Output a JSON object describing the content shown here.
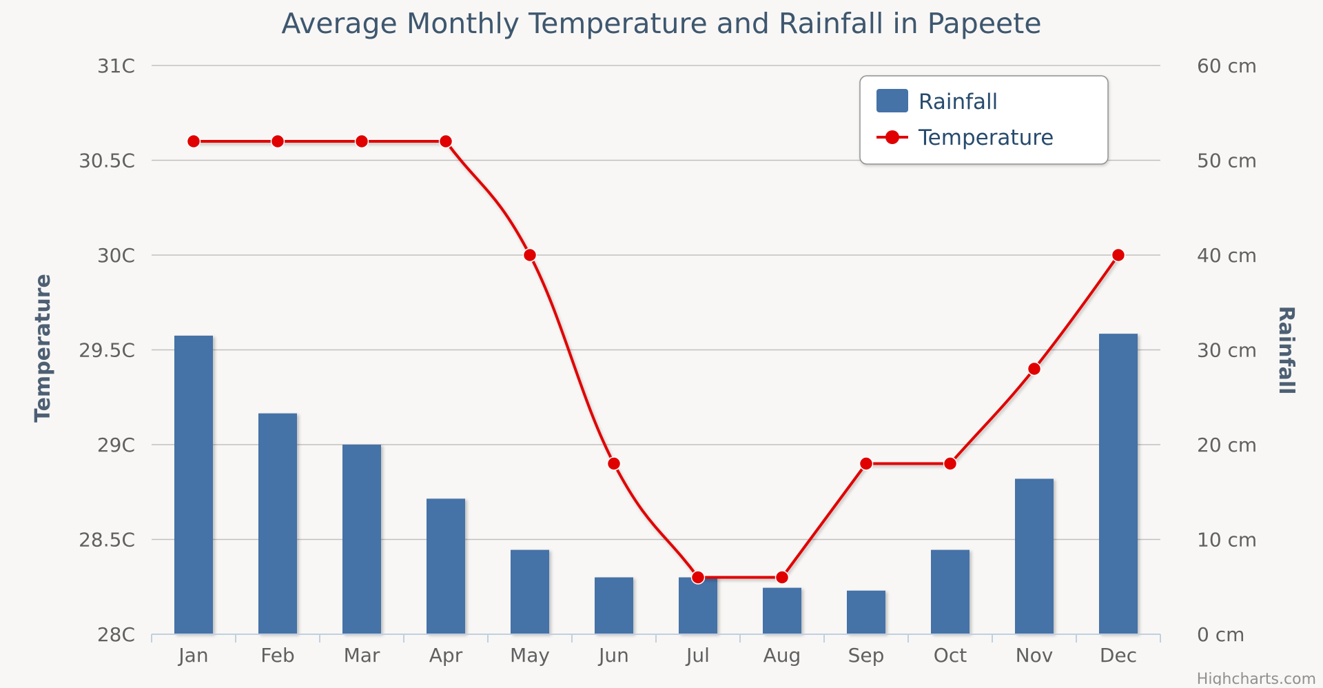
{
  "chart_data": {
    "type": "bar+line",
    "title": "Average Monthly Temperature and Rainfall in Papeete",
    "categories": [
      "Jan",
      "Feb",
      "Mar",
      "Apr",
      "May",
      "Jun",
      "Jul",
      "Aug",
      "Sep",
      "Oct",
      "Nov",
      "Dec"
    ],
    "series": [
      {
        "name": "Rainfall",
        "type": "bar",
        "axis": "right",
        "color": "#4572a7",
        "values": [
          31.5,
          23.3,
          20.0,
          14.3,
          8.9,
          6.0,
          6.0,
          4.9,
          4.6,
          8.9,
          16.4,
          31.7
        ]
      },
      {
        "name": "Temperature",
        "type": "line",
        "axis": "left",
        "color": "#e00000",
        "values": [
          30.6,
          30.6,
          30.6,
          30.6,
          30.0,
          28.9,
          28.3,
          28.3,
          28.9,
          28.9,
          29.4,
          30.0
        ]
      }
    ],
    "left_axis": {
      "label": "Temperature",
      "min": 28,
      "max": 31,
      "ticks": [
        28,
        28.5,
        29,
        29.5,
        30,
        30.5,
        31
      ],
      "tick_labels": [
        "28C",
        "28.5C",
        "29C",
        "29.5C",
        "30C",
        "30.5C",
        "31C"
      ]
    },
    "right_axis": {
      "label": "Rainfall",
      "min": 0,
      "max": 60,
      "ticks": [
        0,
        10,
        20,
        30,
        40,
        50,
        60
      ],
      "tick_labels": [
        "0 cm",
        "10 cm",
        "20 cm",
        "30 cm",
        "40 cm",
        "50 cm",
        "60 cm"
      ]
    },
    "legend": {
      "position": "top-right",
      "items": [
        "Rainfall",
        "Temperature"
      ]
    },
    "grid": true,
    "credit": "Highcharts.com"
  }
}
